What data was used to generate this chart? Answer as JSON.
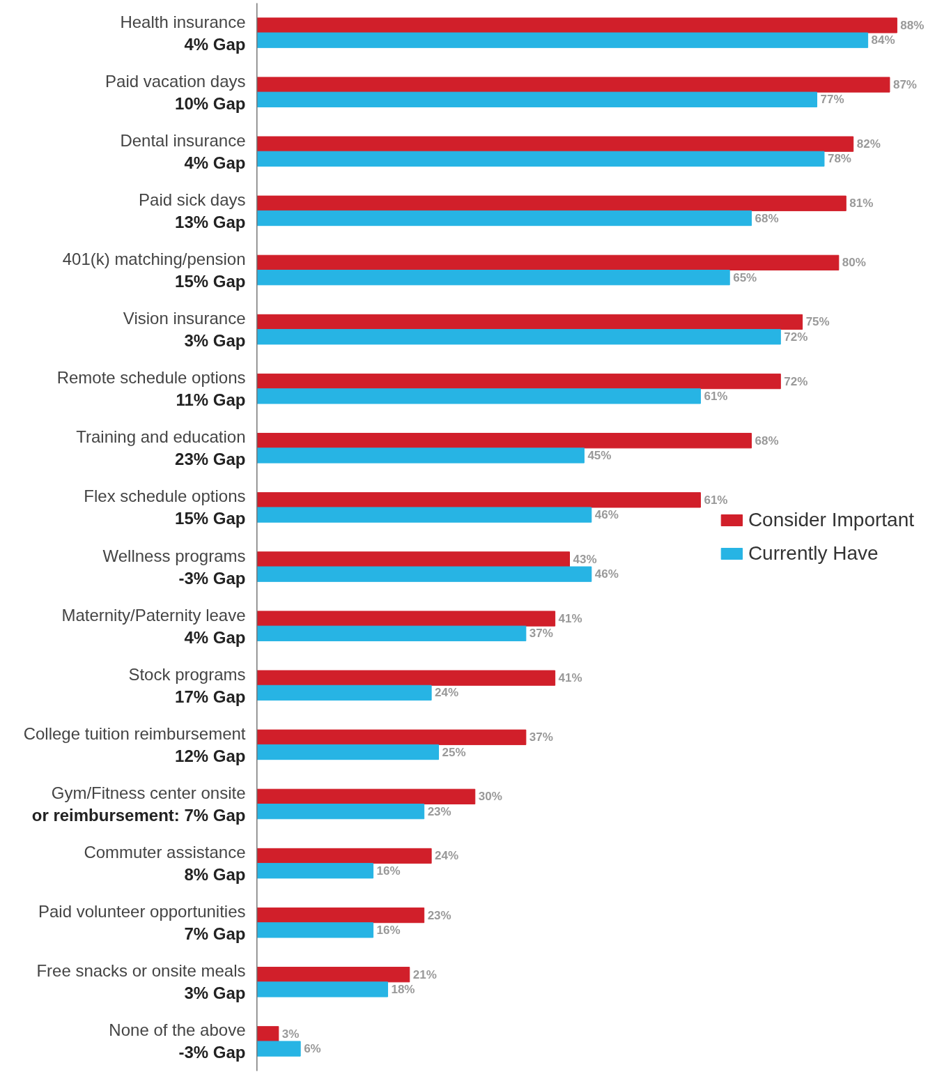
{
  "chart_data": {
    "type": "bar",
    "orientation": "horizontal",
    "legend": "right",
    "categories": [
      "Health insurance\n4% Gap",
      "Paid vacation days\n10% Gap",
      "Dental insurance\n4% Gap",
      "Paid sick days\n13% Gap",
      "401(k) matching/pension\n15% Gap",
      "Vision insurance\n3% Gap",
      "Remote schedule options\n11% Gap",
      "Training and education\n23% Gap",
      "Flex schedule options\n15% Gap",
      "Wellness programs\n-3% Gap",
      "Maternity/Paternity leave\n4% Gap",
      "Stock programs\n17% Gap",
      "College tuition reimbursement\n12% Gap",
      "Gym/Fitness center onsite\nor reimbursement: 7% Gap",
      "Commuter assistance\n8% Gap",
      "Paid volunteer opportunities\n7% Gap",
      "Free snacks or onsite meals\n3% Gap",
      "None of the above\n-3% Gap"
    ],
    "series": [
      {
        "name": "Consider Important",
        "color": "#d11f2a",
        "values": [
          88,
          87,
          82,
          81,
          80,
          75,
          72,
          68,
          61,
          43,
          41,
          41,
          37,
          30,
          24,
          23,
          21,
          3
        ],
        "value_labels": [
          "88%",
          "87%",
          "82%",
          "81%",
          "80%",
          "75%",
          "72%",
          "68%",
          "61%",
          "43%",
          "41%",
          "41%",
          "37%",
          "30%",
          "24%",
          "23%",
          "21%",
          "3%"
        ]
      },
      {
        "name": "Currently Have",
        "color": "#27b4e4",
        "values": [
          84,
          77,
          78,
          68,
          65,
          72,
          61,
          45,
          46,
          46,
          37,
          24,
          25,
          23,
          16,
          16,
          18,
          6
        ],
        "value_labels": [
          "84%",
          "77%",
          "78%",
          "68%",
          "65%",
          "72%",
          "61%",
          "45%",
          "46%",
          "46%",
          "37%",
          "24%",
          "25%",
          "23%",
          "16%",
          "16%",
          "18%",
          "6%"
        ]
      }
    ]
  }
}
